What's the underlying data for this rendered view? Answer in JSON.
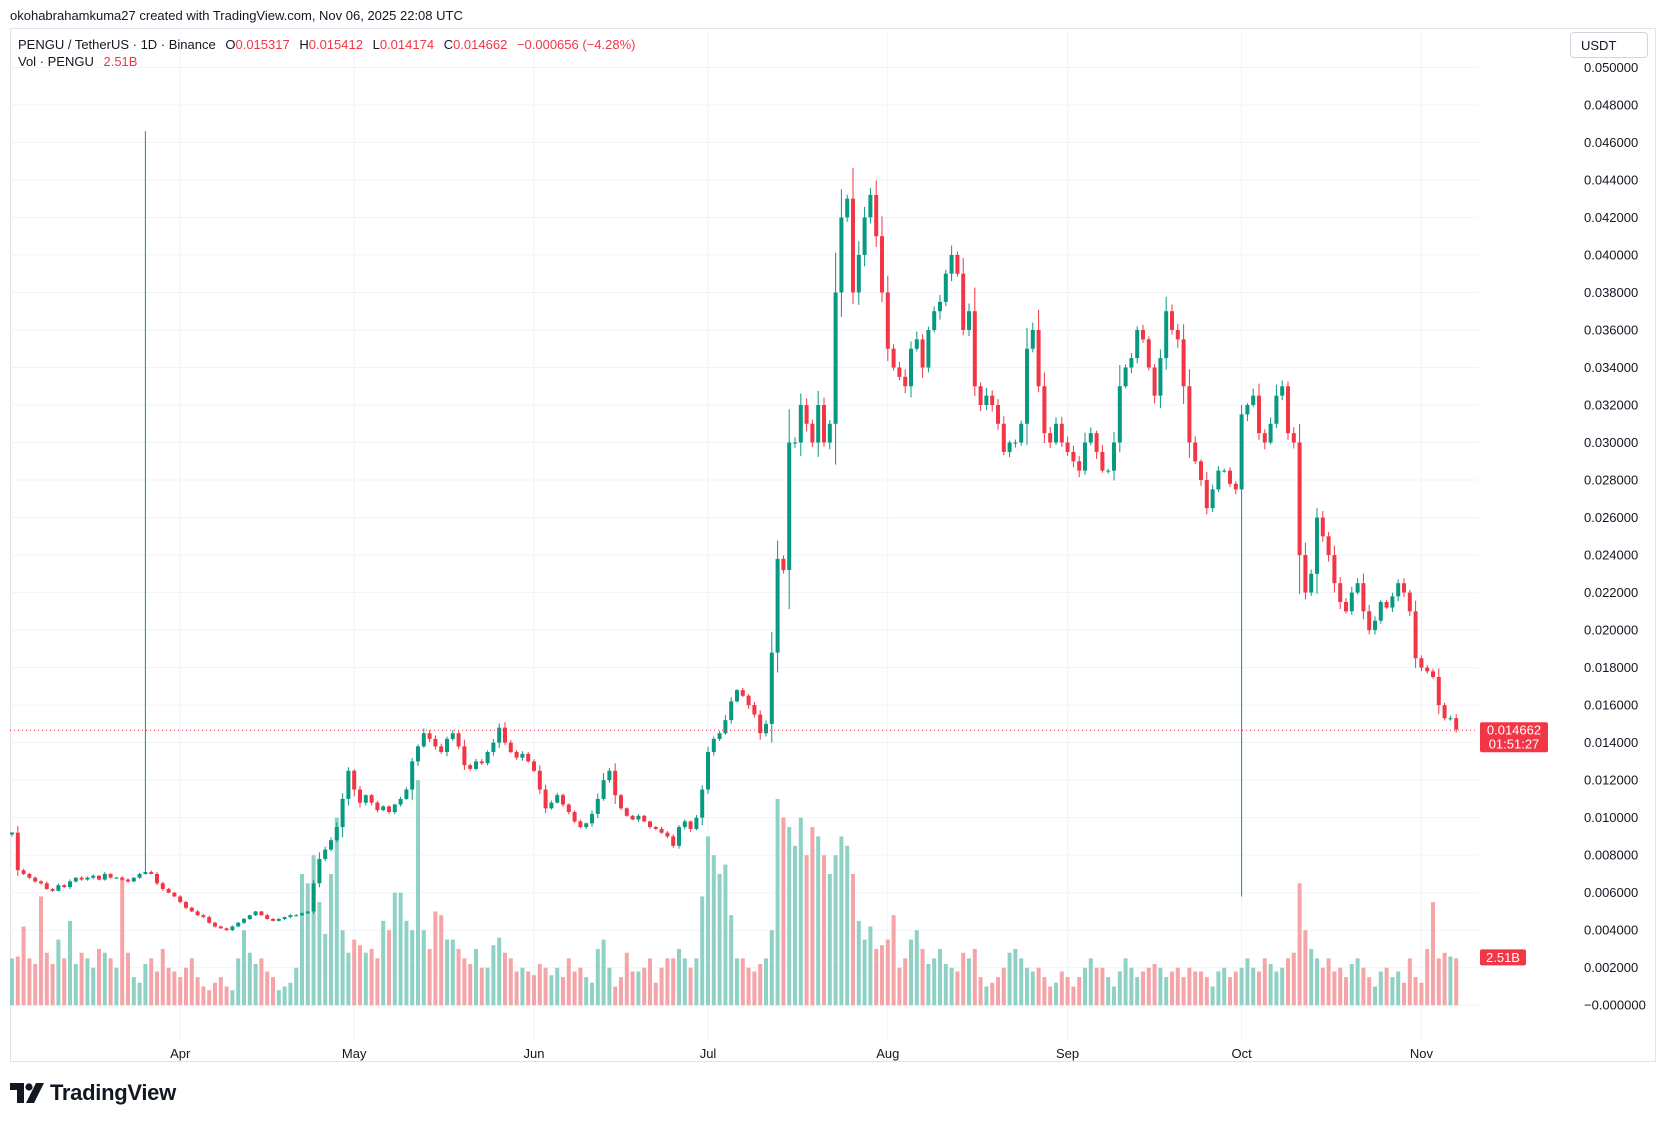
{
  "credit": "okohabrahamkuma27 created with TradingView.com, Nov 06, 2025 22:08 UTC",
  "brand": {
    "name": "TradingView",
    "icon": "tradingview-logo-icon"
  },
  "legend": {
    "symbol": "PENGU / TetherUS · 1D · Binance",
    "o_label": "O",
    "o": "0.015317",
    "h_label": "H",
    "h": "0.015412",
    "l_label": "L",
    "l": "0.014174",
    "c_label": "C",
    "c": "0.014662",
    "change": "−0.000656 (−4.28%)",
    "vol_label": "Vol · PENGU",
    "vol_value": "2.51B"
  },
  "currency_button": "USDT",
  "colors": {
    "up": "#089981",
    "down": "#f23645",
    "up_vol": "#8fd1c4",
    "down_vol": "#f5a4a8",
    "grid": "#f0f3fa"
  },
  "chart_data": {
    "type": "candlestick",
    "title": "",
    "xlabel": "",
    "ylabel": "",
    "ylim": [
      -0.001,
      0.0505
    ],
    "grid": true,
    "y_ticks": [
      "0.050000",
      "0.048000",
      "0.046000",
      "0.044000",
      "0.042000",
      "0.040000",
      "0.038000",
      "0.036000",
      "0.034000",
      "0.032000",
      "0.030000",
      "0.028000",
      "0.026000",
      "0.024000",
      "0.022000",
      "0.020000",
      "0.018000",
      "0.016000",
      "0.014000",
      "0.012000",
      "0.010000",
      "0.008000",
      "0.006000",
      "0.004000",
      "0.002000",
      "−0.000000"
    ],
    "x_labels": [
      {
        "label": "Apr",
        "index": 29
      },
      {
        "label": "May",
        "index": 59
      },
      {
        "label": "Jun",
        "index": 90
      },
      {
        "label": "Jul",
        "index": 120
      },
      {
        "label": "Aug",
        "index": 151
      },
      {
        "label": "Sep",
        "index": 182
      },
      {
        "label": "Oct",
        "index": 212
      },
      {
        "label": "Nov",
        "index": 243
      }
    ],
    "last_price": "0.014662",
    "countdown": "01:51:27",
    "last_price_value": 0.014662,
    "volume_label": "2.51B",
    "volume_label_value": 0.00255,
    "close": [
      0.0092,
      0.0072,
      0.007,
      0.0068,
      0.0066,
      0.0065,
      0.0062,
      0.0061,
      0.0064,
      0.0063,
      0.0066,
      0.0068,
      0.0067,
      0.0068,
      0.0069,
      0.0067,
      0.007,
      0.0068,
      0.0068,
      0.0067,
      0.0066,
      0.0068,
      0.007,
      0.0071,
      0.007,
      0.0065,
      0.0062,
      0.006,
      0.0058,
      0.0055,
      0.0052,
      0.005,
      0.0048,
      0.0047,
      0.0044,
      0.0042,
      0.0041,
      0.004,
      0.0042,
      0.0044,
      0.0046,
      0.0048,
      0.005,
      0.0048,
      0.0046,
      0.0045,
      0.0046,
      0.0047,
      0.0048,
      0.0048,
      0.0049,
      0.005,
      0.0065,
      0.0078,
      0.0083,
      0.0088,
      0.0095,
      0.011,
      0.0125,
      0.0115,
      0.0108,
      0.0112,
      0.0108,
      0.0104,
      0.0106,
      0.0103,
      0.0107,
      0.011,
      0.0115,
      0.013,
      0.0138,
      0.0145,
      0.0142,
      0.0138,
      0.0135,
      0.0142,
      0.0145,
      0.0138,
      0.0128,
      0.0126,
      0.013,
      0.0129,
      0.0135,
      0.014,
      0.0148,
      0.014,
      0.0135,
      0.0132,
      0.0134,
      0.013,
      0.0125,
      0.0115,
      0.0105,
      0.0108,
      0.0112,
      0.0107,
      0.0103,
      0.0098,
      0.0095,
      0.0097,
      0.0102,
      0.011,
      0.012,
      0.0125,
      0.0112,
      0.0105,
      0.0101,
      0.0099,
      0.0101,
      0.0098,
      0.0095,
      0.0094,
      0.0092,
      0.009,
      0.0085,
      0.0095,
      0.0098,
      0.0094,
      0.01,
      0.0115,
      0.0135,
      0.0142,
      0.0145,
      0.0152,
      0.0162,
      0.0168,
      0.0165,
      0.016,
      0.0155,
      0.0145,
      0.015,
      0.0188,
      0.0238,
      0.0232,
      0.03,
      0.03,
      0.032,
      0.031,
      0.03,
      0.032,
      0.03,
      0.031,
      0.038,
      0.042,
      0.043,
      0.038,
      0.04,
      0.042,
      0.0432,
      0.041,
      0.038,
      0.035,
      0.034,
      0.0335,
      0.033,
      0.035,
      0.0355,
      0.034,
      0.036,
      0.037,
      0.0375,
      0.039,
      0.04,
      0.039,
      0.036,
      0.037,
      0.033,
      0.032,
      0.0325,
      0.032,
      0.031,
      0.0295,
      0.03,
      0.03,
      0.031,
      0.035,
      0.036,
      0.033,
      0.0305,
      0.03,
      0.031,
      0.03,
      0.0295,
      0.029,
      0.0285,
      0.03,
      0.0305,
      0.0295,
      0.0285,
      0.0285,
      0.03,
      0.033,
      0.034,
      0.0345,
      0.036,
      0.0355,
      0.034,
      0.0325,
      0.0345,
      0.037,
      0.036,
      0.0355,
      0.033,
      0.03,
      0.029,
      0.028,
      0.0265,
      0.0275,
      0.0285,
      0.0285,
      0.0278,
      0.0275,
      0.0315,
      0.032,
      0.0325,
      0.0305,
      0.03,
      0.031,
      0.0325,
      0.033,
      0.0305,
      0.03,
      0.024,
      0.022,
      0.023,
      0.026,
      0.025,
      0.024,
      0.0225,
      0.0215,
      0.021,
      0.022,
      0.0225,
      0.021,
      0.02,
      0.0205,
      0.0215,
      0.0212,
      0.0218,
      0.0225,
      0.022,
      0.021,
      0.0185,
      0.018,
      0.0178,
      0.0175,
      0.016,
      0.0153,
      0.0153,
      0.0147
    ],
    "volume": [
      0.0025,
      0.0026,
      0.0042,
      0.0025,
      0.0022,
      0.0058,
      0.0028,
      0.0022,
      0.0035,
      0.0025,
      0.0045,
      0.0022,
      0.0028,
      0.0025,
      0.002,
      0.003,
      0.0028,
      0.0025,
      0.002,
      0.0068,
      0.0028,
      0.0015,
      0.0012,
      0.0022,
      0.0025,
      0.0018,
      0.003,
      0.002,
      0.0018,
      0.0015,
      0.002,
      0.0025,
      0.0015,
      0.001,
      0.0008,
      0.0012,
      0.0015,
      0.001,
      0.0008,
      0.0025,
      0.004,
      0.0028,
      0.0022,
      0.0025,
      0.0018,
      0.0015,
      0.0008,
      0.001,
      0.0012,
      0.002,
      0.007,
      0.0065,
      0.008,
      0.0055,
      0.0038,
      0.007,
      0.01,
      0.004,
      0.0028,
      0.0035,
      0.0032,
      0.0028,
      0.003,
      0.0025,
      0.0045,
      0.004,
      0.006,
      0.006,
      0.0045,
      0.004,
      0.012,
      0.004,
      0.003,
      0.005,
      0.0048,
      0.0035,
      0.0035,
      0.003,
      0.0025,
      0.0022,
      0.003,
      0.002,
      0.002,
      0.0032,
      0.0036,
      0.0028,
      0.0025,
      0.0018,
      0.002,
      0.0018,
      0.0016,
      0.0022,
      0.002,
      0.0016,
      0.002,
      0.0015,
      0.0025,
      0.0018,
      0.002,
      0.0015,
      0.0012,
      0.003,
      0.0035,
      0.002,
      0.001,
      0.0015,
      0.0028,
      0.0018,
      0.0018,
      0.002,
      0.0025,
      0.0012,
      0.002,
      0.0025,
      0.0025,
      0.003,
      0.0025,
      0.002,
      0.0025,
      0.0058,
      0.009,
      0.008,
      0.007,
      0.0075,
      0.0048,
      0.0025,
      0.0025,
      0.002,
      0.0018,
      0.0022,
      0.0025,
      0.004,
      0.011,
      0.01,
      0.0095,
      0.0085,
      0.01,
      0.008,
      0.0095,
      0.009,
      0.008,
      0.007,
      0.008,
      0.009,
      0.0085,
      0.007,
      0.0045,
      0.0035,
      0.0042,
      0.003,
      0.0032,
      0.0035,
      0.0048,
      0.002,
      0.0025,
      0.0035,
      0.004,
      0.003,
      0.0022,
      0.0025,
      0.003,
      0.0022,
      0.002,
      0.0018,
      0.0028,
      0.0025,
      0.003,
      0.0015,
      0.001,
      0.0012,
      0.0015,
      0.002,
      0.0028,
      0.003,
      0.0025,
      0.002,
      0.0018,
      0.002,
      0.0015,
      0.001,
      0.0012,
      0.0018,
      0.0015,
      0.001,
      0.0015,
      0.002,
      0.0025,
      0.002,
      0.002,
      0.0015,
      0.001,
      0.0018,
      0.0025,
      0.002,
      0.0015,
      0.0018,
      0.002,
      0.0022,
      0.002,
      0.0015,
      0.0018,
      0.002,
      0.0015,
      0.002,
      0.0018,
      0.0018,
      0.0015,
      0.001,
      0.0018,
      0.002,
      0.0015,
      0.0018,
      0.002,
      0.0025,
      0.002,
      0.0018,
      0.0025,
      0.0022,
      0.0018,
      0.002,
      0.0025,
      0.0028,
      0.0065,
      0.004,
      0.003,
      0.0025,
      0.002,
      0.0025,
      0.0018,
      0.002,
      0.0015,
      0.0022,
      0.0025,
      0.002,
      0.0015,
      0.001,
      0.0018,
      0.002,
      0.0015,
      0.0018,
      0.0012,
      0.0025,
      0.0015,
      0.0012,
      0.003,
      0.0055,
      0.0025,
      0.0028,
      0.0026,
      0.0025
    ]
  }
}
